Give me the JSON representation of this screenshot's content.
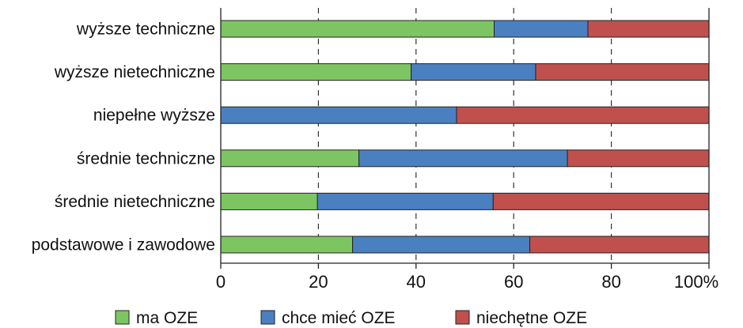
{
  "chart_data": {
    "type": "bar",
    "orientation": "horizontal",
    "stacked": true,
    "categories": [
      "wyższe techniczne",
      "wyższe nietechniczne",
      "niepełne wyższe",
      "średnie techniczne",
      "średnie nietechniczne",
      "podstawowe i zawodowe"
    ],
    "series": [
      {
        "name": "ma OZE",
        "color": "#7dc562",
        "values": [
          56,
          39,
          0,
          28.3,
          19.8,
          27
        ]
      },
      {
        "name": "chce mieć OZE",
        "color": "#4b80c0",
        "values": [
          19.2,
          25.5,
          48.3,
          42.7,
          36,
          36.3
        ]
      },
      {
        "name": "niechętne OZE",
        "color": "#c0504e",
        "values": [
          24.8,
          35.5,
          51.7,
          29,
          44.2,
          36.7
        ]
      }
    ],
    "xlim": [
      0,
      100
    ],
    "x_ticks": [
      "0",
      "20",
      "40",
      "60",
      "80",
      "100%"
    ],
    "grid": "vertical dashed",
    "legend_position": "bottom",
    "title": "",
    "xlabel": "",
    "ylabel": ""
  }
}
